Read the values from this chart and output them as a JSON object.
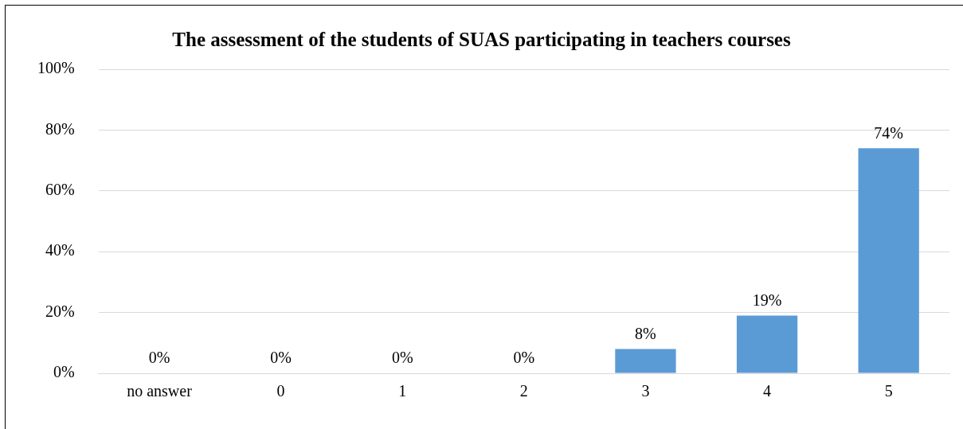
{
  "chart_data": {
    "type": "bar",
    "title": "The assessment of the students of SUAS participating in teachers courses",
    "categories": [
      "no answer",
      "0",
      "1",
      "2",
      "3",
      "4",
      "5"
    ],
    "values": [
      0,
      0,
      0,
      0,
      8,
      19,
      74
    ],
    "value_labels": [
      "0%",
      "0%",
      "0%",
      "0%",
      "8%",
      "19%",
      "74%"
    ],
    "color": "#5b9bd5",
    "ylim": [
      0,
      100
    ],
    "yticks": [
      {
        "value": 0,
        "label": "0%"
      },
      {
        "value": 20,
        "label": "20%"
      },
      {
        "value": 40,
        "label": "40%"
      },
      {
        "value": 60,
        "label": "60%"
      },
      {
        "value": 80,
        "label": "80%"
      },
      {
        "value": 100,
        "label": "100%"
      }
    ],
    "grid": "y",
    "legend": false
  }
}
